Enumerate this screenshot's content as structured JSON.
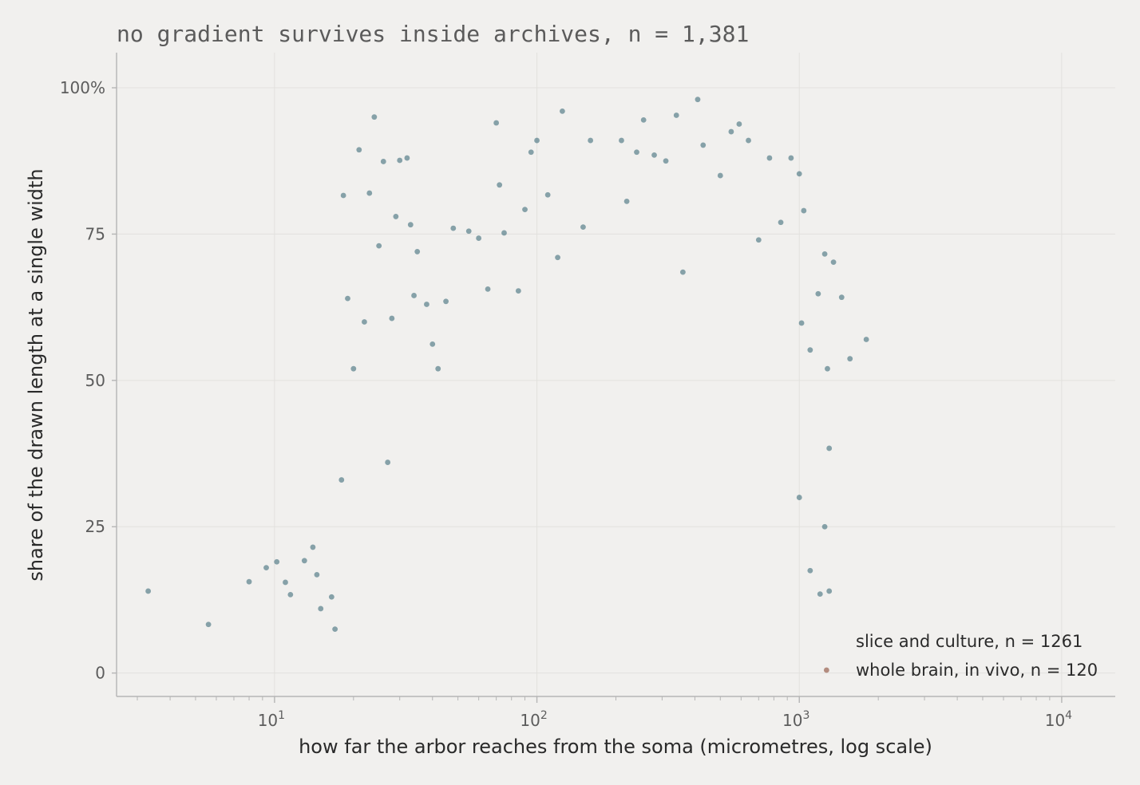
{
  "chart_data": {
    "type": "scatter",
    "title": "no gradient survives inside archives, n = 1,381",
    "xlabel": "how far the arbor reaches from the soma (micrometres, log scale)",
    "ylabel": "share of the drawn length at a single width",
    "x_scale": "log",
    "xlim": [
      2.5,
      16000
    ],
    "ylim": [
      -4,
      106
    ],
    "x_ticks": [
      {
        "value": 10,
        "base": "10",
        "exp": "1"
      },
      {
        "value": 100,
        "base": "10",
        "exp": "2"
      },
      {
        "value": 1000,
        "base": "10",
        "exp": "3"
      },
      {
        "value": 10000,
        "base": "10",
        "exp": "4"
      }
    ],
    "y_ticks": [
      {
        "value": 0,
        "label": "0"
      },
      {
        "value": 25,
        "label": "25"
      },
      {
        "value": 50,
        "label": "50"
      },
      {
        "value": 75,
        "label": "75"
      },
      {
        "value": 100,
        "label": "100%"
      }
    ],
    "grid": true,
    "legend_position": "bottom-right",
    "colors": {
      "slice": "#2e6070",
      "whole": "#8a4a35",
      "background": "#f1f0ee"
    },
    "series": [
      {
        "name": "slice and culture, n = 1261",
        "legend_label": "slice and culture, n = 1261",
        "color": "#2e6070",
        "n": 1261,
        "points": [
          [
            3.3,
            14
          ],
          [
            5.6,
            8.3
          ],
          [
            8,
            15.6
          ],
          [
            9.3,
            18
          ],
          [
            10.2,
            19
          ],
          [
            11,
            15.5
          ],
          [
            11.5,
            13.4
          ],
          [
            13,
            19.2
          ],
          [
            14,
            21.5
          ],
          [
            14.5,
            16.8
          ],
          [
            15,
            11
          ],
          [
            16.5,
            13
          ],
          [
            17,
            7.5
          ],
          [
            18,
            33
          ],
          [
            18.3,
            81.6
          ],
          [
            19,
            64
          ],
          [
            20,
            52
          ],
          [
            21,
            89.4
          ],
          [
            22,
            60
          ],
          [
            23,
            82
          ],
          [
            24,
            95
          ],
          [
            25,
            73
          ],
          [
            26,
            87.4
          ],
          [
            27,
            36
          ],
          [
            28,
            60.6
          ],
          [
            29,
            78
          ],
          [
            30,
            87.6
          ],
          [
            32,
            88
          ],
          [
            33,
            76.6
          ],
          [
            34,
            64.5
          ],
          [
            35,
            72
          ],
          [
            38,
            63
          ],
          [
            40,
            56.2
          ],
          [
            42,
            52
          ],
          [
            45,
            63.5
          ],
          [
            48,
            76
          ],
          [
            55,
            75.5
          ],
          [
            60,
            74.3
          ],
          [
            65,
            65.6
          ],
          [
            70,
            94
          ],
          [
            72,
            83.4
          ],
          [
            75,
            75.2
          ],
          [
            85,
            65.3
          ],
          [
            90,
            79.2
          ],
          [
            95,
            89
          ],
          [
            100,
            91
          ],
          [
            110,
            81.7
          ],
          [
            120,
            71
          ],
          [
            125,
            96
          ],
          [
            150,
            76.2
          ],
          [
            160,
            91
          ],
          [
            210,
            91
          ],
          [
            220,
            80.6
          ],
          [
            240,
            89
          ],
          [
            255,
            94.5
          ],
          [
            280,
            88.5
          ],
          [
            310,
            87.5
          ],
          [
            340,
            95.3
          ],
          [
            360,
            68.5
          ],
          [
            410,
            98
          ],
          [
            430,
            90.2
          ],
          [
            500,
            85
          ],
          [
            550,
            92.5
          ],
          [
            590,
            93.8
          ],
          [
            640,
            91
          ],
          [
            700,
            74
          ],
          [
            770,
            88
          ],
          [
            850,
            77
          ],
          [
            930,
            88
          ],
          [
            1000,
            85.3
          ],
          [
            1040,
            79
          ],
          [
            1020,
            59.8
          ],
          [
            1100,
            55.2
          ],
          [
            1180,
            64.8
          ],
          [
            1250,
            71.6
          ],
          [
            1350,
            70.2
          ],
          [
            1450,
            64.2
          ],
          [
            1560,
            53.7
          ],
          [
            1800,
            57
          ],
          [
            1000,
            30
          ],
          [
            1100,
            17.5
          ],
          [
            1200,
            13.5
          ],
          [
            1300,
            14
          ],
          [
            1250,
            25
          ],
          [
            1300,
            38.4
          ],
          [
            1280,
            52
          ]
        ]
      },
      {
        "name": "whole brain, in vivo, n = 120",
        "legend_label": "whole brain, in vivo, n = 120",
        "color": "#8a4a35",
        "n": 120,
        "points": [
          [
            1270,
            0.5
          ]
        ]
      }
    ]
  }
}
